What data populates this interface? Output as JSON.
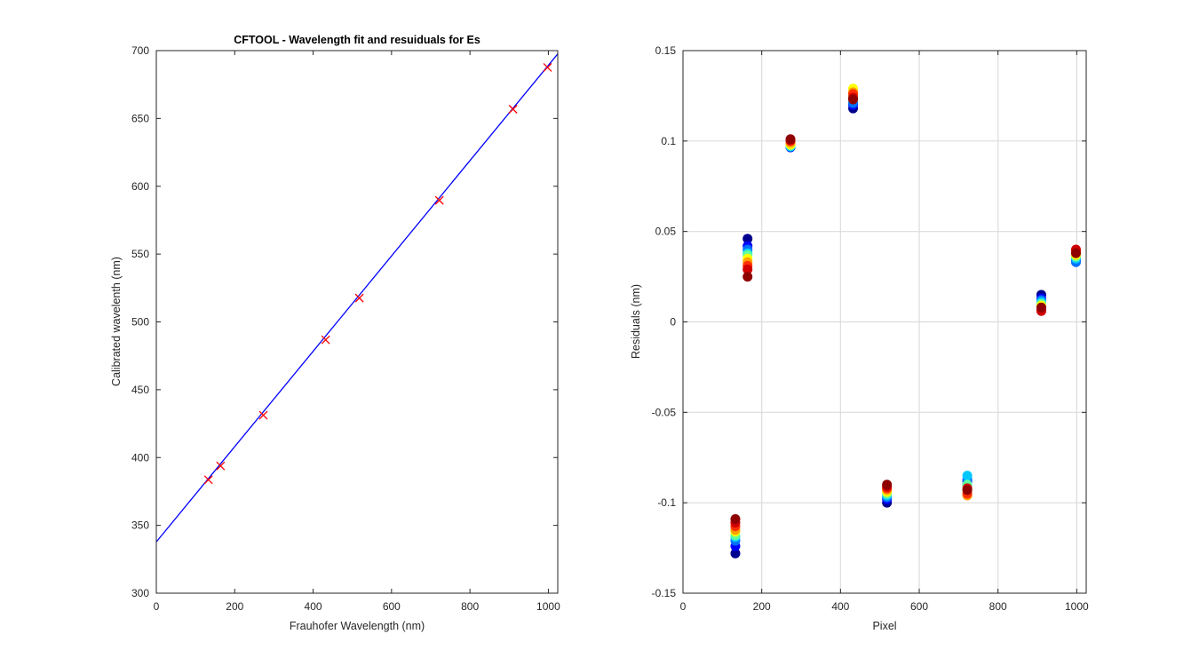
{
  "chart_data": [
    {
      "type": "line",
      "title": "CFTOOL - Wavelength fit and resuiduals for Es",
      "xlabel": "Frauhofer Wavelength (nm)",
      "ylabel": "Calibrated wavelenth (nm)",
      "xlim": [
        0,
        1024
      ],
      "ylim": [
        300,
        700
      ],
      "xticks": [
        0,
        200,
        400,
        600,
        800,
        1000
      ],
      "yticks": [
        300,
        350,
        400,
        450,
        500,
        550,
        600,
        650,
        700
      ],
      "xtick_labels": [
        "0",
        "200",
        "400",
        "600",
        "800",
        "1000"
      ],
      "ytick_labels": [
        "300",
        "350",
        "400",
        "450",
        "500",
        "550",
        "600",
        "650",
        "700"
      ],
      "grid": false,
      "series": [
        {
          "kind": "line",
          "color": "#0000ff",
          "x": [
            0,
            1024
          ],
          "y": [
            337.8,
            697.6
          ]
        },
        {
          "kind": "scatter",
          "marker": "x",
          "color": "#ff0000",
          "x": [
            133,
            164,
            273,
            432,
            518,
            722,
            910,
            998
          ],
          "y": [
            383.6,
            393.8,
            431.2,
            486.8,
            517.6,
            589.6,
            656.8,
            687.6
          ]
        }
      ]
    },
    {
      "type": "scatter",
      "xlabel": "Pixel",
      "ylabel": "Residuals  (nm)",
      "xlim": [
        0,
        1024
      ],
      "ylim": [
        -0.15,
        0.15
      ],
      "xticks": [
        0,
        200,
        400,
        600,
        800,
        1000
      ],
      "yticks": [
        -0.15,
        -0.1,
        -0.05,
        0,
        0.05,
        0.1,
        0.15
      ],
      "xtick_labels": [
        "0",
        "200",
        "400",
        "600",
        "800",
        "1000"
      ],
      "ytick_labels": [
        "-0.15",
        "-0.1",
        "-0.05",
        "0",
        "0.05",
        "0.1",
        "0.15"
      ],
      "grid": true,
      "colormap": [
        "#00008f",
        "#0000ff",
        "#0070ff",
        "#00c8ff",
        "#60ffa0",
        "#ffff00",
        "#ffa000",
        "#ff3000",
        "#d00000",
        "#8f0000"
      ],
      "groups": [
        {
          "x": 133,
          "y": [
            -0.128,
            -0.124,
            -0.121,
            -0.119,
            -0.118,
            -0.116,
            -0.115,
            -0.113,
            -0.111,
            -0.109
          ]
        },
        {
          "x": 164,
          "y": [
            0.046,
            0.042,
            0.04,
            0.038,
            0.037,
            0.035,
            0.033,
            0.031,
            0.029,
            0.025
          ]
        },
        {
          "x": 273,
          "y": [
            0.097,
            0.0965,
            0.0968,
            0.097,
            0.0975,
            0.098,
            0.099,
            0.1,
            0.1005,
            0.101
          ]
        },
        {
          "x": 432,
          "y": [
            0.118,
            0.12,
            0.121,
            0.123,
            0.125,
            0.129,
            0.127,
            0.126,
            0.124,
            0.123
          ]
        },
        {
          "x": 518,
          "y": [
            -0.1,
            -0.098,
            -0.097,
            -0.096,
            -0.095,
            -0.094,
            -0.093,
            -0.092,
            -0.091,
            -0.09
          ]
        },
        {
          "x": 722,
          "y": [
            -0.09,
            -0.088,
            -0.087,
            -0.085,
            -0.09,
            -0.094,
            -0.096,
            -0.095,
            -0.092,
            -0.093
          ]
        },
        {
          "x": 910,
          "y": [
            0.015,
            0.013,
            0.012,
            0.011,
            0.01,
            0.009,
            0.008,
            0.007,
            0.006,
            0.008
          ]
        },
        {
          "x": 998,
          "y": [
            0.035,
            0.034,
            0.033,
            0.035,
            0.036,
            0.037,
            0.038,
            0.039,
            0.04,
            0.038
          ]
        }
      ]
    }
  ]
}
